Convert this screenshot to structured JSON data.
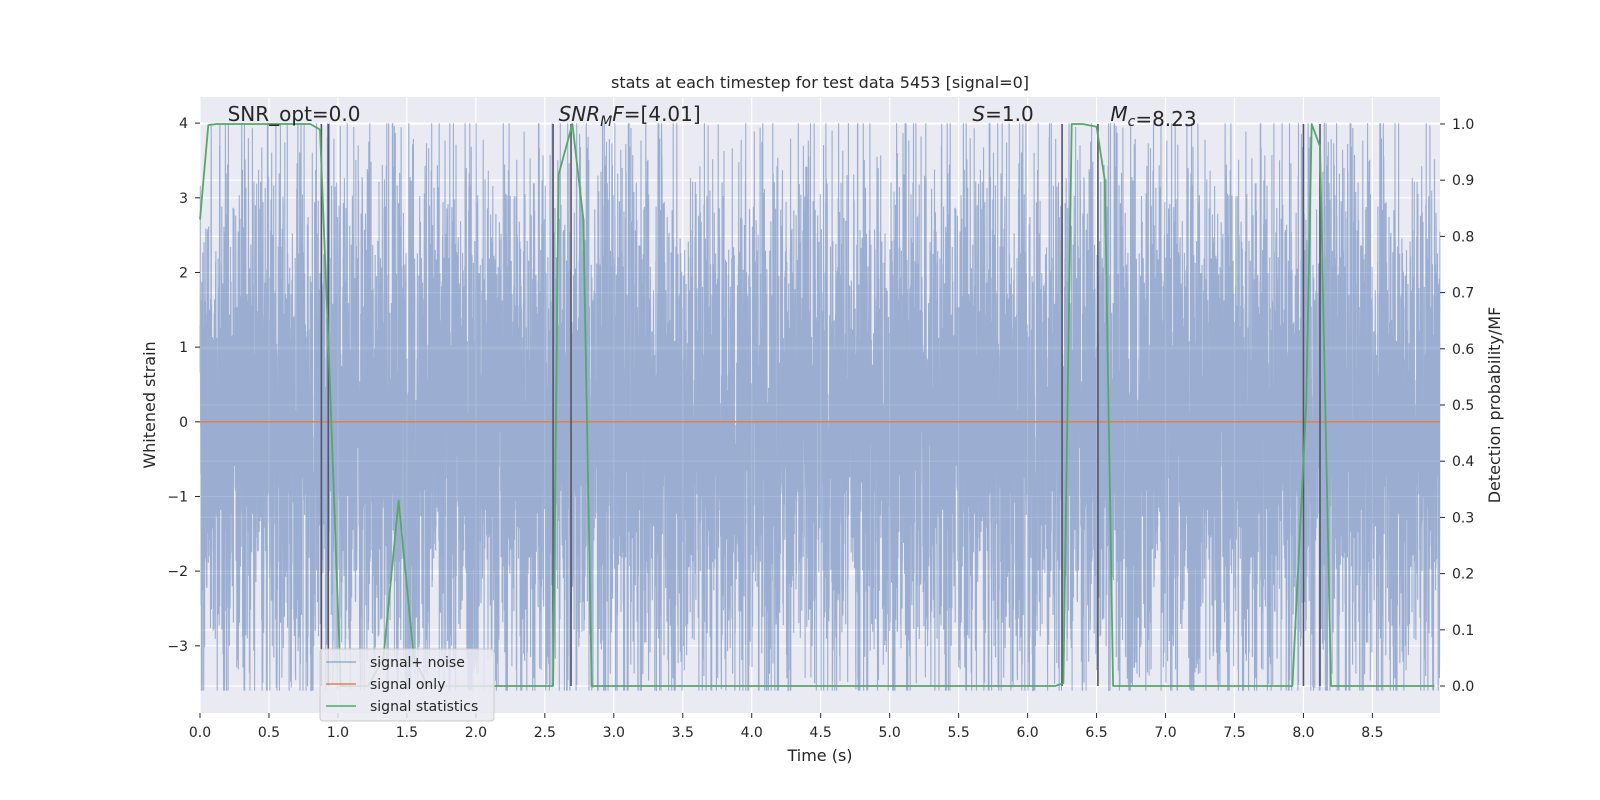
{
  "chart_data": {
    "type": "line",
    "title": "stats at each timestep for test data 5453 [signal=0]",
    "xlabel": "Time (s)",
    "ylabel": "Whitened strain",
    "y2label": "Detection probability/MF",
    "xlim": [
      0.0,
      8.99
    ],
    "ylim": [
      -3.9,
      4.35
    ],
    "y2lim": [
      -0.048,
      1.048
    ],
    "x_ticks": [
      "0.0",
      "0.5",
      "1.0",
      "1.5",
      "2.0",
      "2.5",
      "3.0",
      "3.5",
      "4.0",
      "4.5",
      "5.0",
      "5.5",
      "6.0",
      "6.5",
      "7.0",
      "7.5",
      "8.0",
      "8.5"
    ],
    "y_ticks": [
      "4",
      "3",
      "2",
      "1",
      "0",
      "−1",
      "−2",
      "−3"
    ],
    "y2_ticks": [
      "1.0",
      "0.9",
      "0.8",
      "0.7",
      "0.6",
      "0.5",
      "0.4",
      "0.3",
      "0.2",
      "0.1",
      "0.0"
    ],
    "grid": true,
    "legend_placement": "lower-left",
    "annotations": [
      {
        "x": 0.2,
        "text": "SNR_opt=0.0"
      },
      {
        "x": 2.6,
        "text_italic": "SNR",
        "sub": "M",
        "text_italic2": "F",
        "text": "=[4.01]"
      },
      {
        "x": 5.6,
        "text_italic": "S",
        "text": "=1.0"
      },
      {
        "x": 6.6,
        "text_italic": "M",
        "sub": "c",
        "text": "=8.23"
      }
    ],
    "series": [
      {
        "name": "signal+ noise",
        "color": "#4c72b0",
        "alpha": 0.5,
        "kind": "noise",
        "typical_amplitude": 1.9,
        "peak_amplitude": 4.0,
        "sample_rate": 1000
      },
      {
        "name": "signal only",
        "color": "#dd8452",
        "values_constant": 0.0
      },
      {
        "name": "signal statistics",
        "color": "#55a868",
        "axis": "right",
        "x": [
          0.0,
          0.06,
          0.12,
          0.2,
          0.5,
          0.8,
          0.87,
          0.94,
          1.02,
          1.12,
          1.22,
          1.33,
          1.44,
          1.55,
          1.65,
          1.8,
          2.0,
          2.3,
          2.5,
          2.56,
          2.6,
          2.7,
          2.78,
          2.84,
          3.0,
          4.0,
          5.0,
          6.0,
          6.2,
          6.26,
          6.32,
          6.4,
          6.5,
          6.56,
          6.62,
          6.7,
          7.0,
          7.5,
          7.92,
          8.02,
          8.06,
          8.12,
          8.2,
          8.25,
          8.3,
          8.5,
          8.95
        ],
        "y": [
          0.83,
          0.998,
          1.0,
          1.0,
          1.0,
          1.0,
          0.99,
          0.55,
          0.0,
          0.0,
          0.0,
          0.05,
          0.33,
          0.05,
          0.0,
          0.0,
          0.0,
          0.0,
          0.0,
          0.0,
          0.91,
          1.0,
          0.83,
          0.0,
          0.0,
          0.0,
          0.0,
          0.0,
          0.0,
          0.005,
          1.0,
          1.0,
          0.995,
          0.9,
          0.0,
          0.0,
          0.0,
          0.0,
          0.0,
          0.5,
          1.0,
          0.96,
          0.0,
          0.0,
          0.0,
          0.0,
          0.0
        ]
      }
    ],
    "vlines": [
      0.88,
      0.93,
      2.56,
      2.69,
      6.25,
      6.51,
      8.0,
      8.12
    ]
  }
}
